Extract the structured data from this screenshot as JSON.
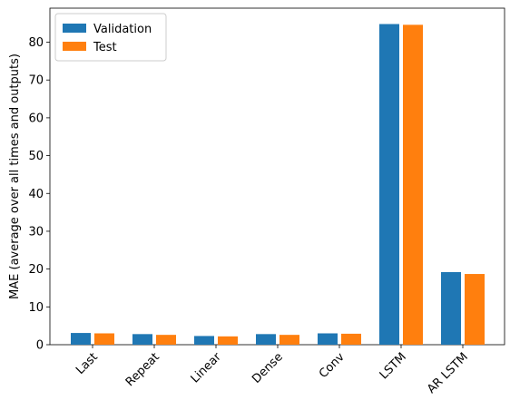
{
  "chart_data": {
    "type": "bar",
    "title": "",
    "xlabel": "",
    "ylabel": "MAE (average over all times and outputs)",
    "categories": [
      "Last",
      "Repeat",
      "Linear",
      "Dense",
      "Conv",
      "LSTM",
      "AR LSTM"
    ],
    "series": [
      {
        "name": "Validation",
        "color": "#1f77b4",
        "values": [
          3.1,
          2.8,
          2.3,
          2.8,
          3.0,
          84.8,
          19.2
        ]
      },
      {
        "name": "Test",
        "color": "#ff7f0e",
        "values": [
          3.0,
          2.6,
          2.2,
          2.6,
          2.9,
          84.6,
          18.7
        ]
      }
    ],
    "ylim": [
      0,
      89
    ],
    "yticks": [
      0,
      10,
      20,
      30,
      40,
      50,
      60,
      70,
      80
    ],
    "grid": false,
    "legend_position": "top-left",
    "xtick_rotation": 45
  }
}
